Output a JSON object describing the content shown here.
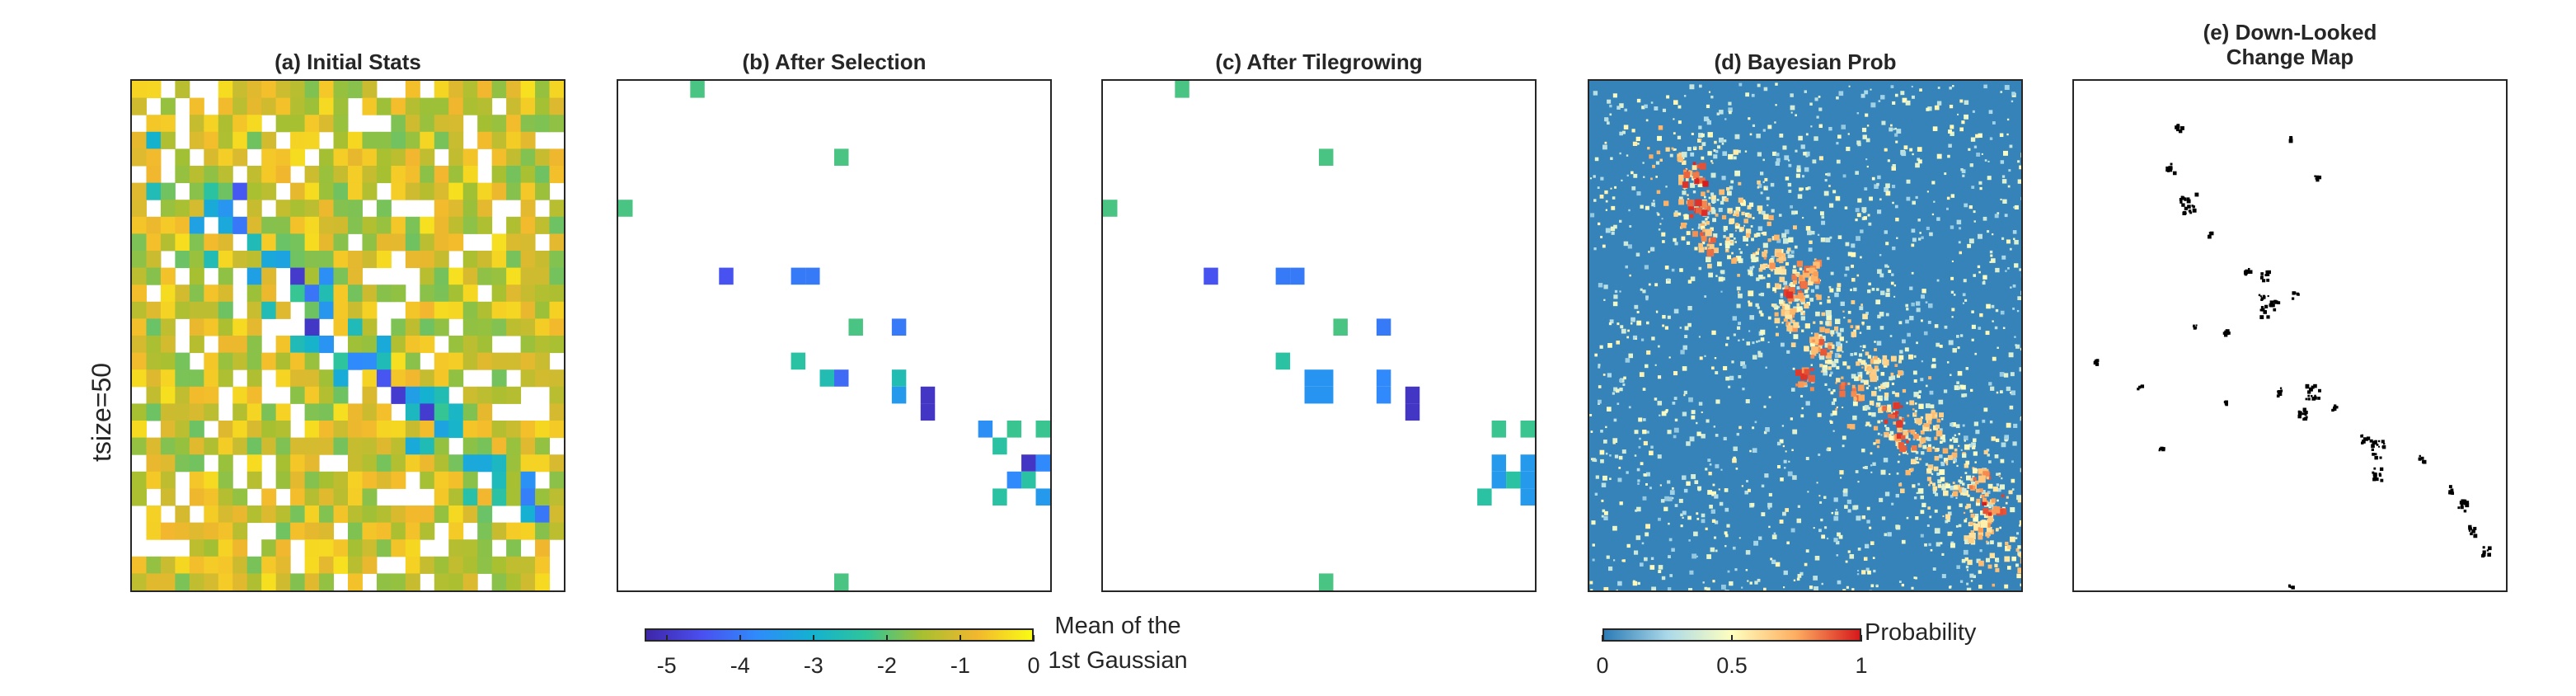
{
  "row_label": "tsize=50",
  "panels": [
    {
      "title": "(a) Initial Stats"
    },
    {
      "title": "(b) After Selection"
    },
    {
      "title": "(c) After Tilegrowing"
    },
    {
      "title": "(d) Bayesian Prob"
    },
    {
      "title": "(e) Down-Looked\nChange Map"
    }
  ],
  "colorbar_gauss": {
    "label": "Mean of the\n1st Gaussian",
    "ticks": [
      "-5",
      "-4",
      "-3",
      "-2",
      "-1",
      "0"
    ],
    "range": [
      -5.3,
      0
    ],
    "colors": [
      "#3e26a8",
      "#4a4ff0",
      "#2f8bfb",
      "#14b1d1",
      "#2fc59a",
      "#a6c031",
      "#f2b72e",
      "#f9fb15"
    ]
  },
  "colorbar_prob": {
    "label": "Probability",
    "ticks": [
      "0",
      "0.5",
      "1"
    ],
    "range": [
      0,
      1
    ],
    "colors": [
      "#2c7bb6",
      "#abd9e9",
      "#ffffbf",
      "#fdae61",
      "#d7191c"
    ]
  },
  "chart_data": [
    {
      "type": "heatmap",
      "title": "(a) Initial Stats",
      "grid": [
        30,
        30
      ],
      "colormap": "parula",
      "clim": [
        -5.3,
        0
      ],
      "description_values": "per-tile mean of the 1st Gaussian; mostly -1.5 to -0.3, low values (-5 to -3) along a diagonal band from upper-center to lower-right; some tiles empty (white)",
      "low_band_cells": [
        [
          6,
          7
        ],
        [
          7,
          6
        ],
        [
          8,
          6
        ],
        [
          8,
          7
        ],
        [
          10,
          10
        ],
        [
          11,
          11
        ],
        [
          11,
          13
        ],
        [
          12,
          12
        ],
        [
          13,
          13
        ],
        [
          14,
          12
        ],
        [
          15,
          13
        ],
        [
          16,
          15
        ],
        [
          16,
          16
        ],
        [
          17,
          17
        ],
        [
          18,
          18
        ],
        [
          18,
          19
        ],
        [
          19,
          20
        ],
        [
          20,
          21
        ],
        [
          22,
          24
        ],
        [
          23,
          27
        ],
        [
          24,
          27
        ],
        [
          25,
          28
        ]
      ]
    },
    {
      "type": "heatmap",
      "title": "(b) After Selection",
      "grid": [
        30,
        30
      ],
      "colormap": "parula",
      "clim": [
        -5.3,
        0
      ],
      "selected_cells": [
        {
          "row": 0,
          "col": 5,
          "value": -2.1
        },
        {
          "row": 4,
          "col": 15,
          "value": -2.1
        },
        {
          "row": 7,
          "col": 0,
          "value": -2.1
        },
        {
          "row": 11,
          "col": 7,
          "value": -4.5
        },
        {
          "row": 11,
          "col": 13,
          "value": -4.0
        },
        {
          "row": 11,
          "col": 12,
          "value": -4.0
        },
        {
          "row": 14,
          "col": 16,
          "value": -2.1
        },
        {
          "row": 14,
          "col": 19,
          "value": -4.0
        },
        {
          "row": 16,
          "col": 12,
          "value": -2.4
        },
        {
          "row": 17,
          "col": 15,
          "value": -4.2
        },
        {
          "row": 17,
          "col": 14,
          "value": -2.6
        },
        {
          "row": 17,
          "col": 19,
          "value": -2.6
        },
        {
          "row": 18,
          "col": 19,
          "value": -3.5
        },
        {
          "row": 18,
          "col": 21,
          "value": -5.0
        },
        {
          "row": 19,
          "col": 21,
          "value": -5.0
        },
        {
          "row": 20,
          "col": 25,
          "value": -3.7
        },
        {
          "row": 20,
          "col": 27,
          "value": -2.2
        },
        {
          "row": 20,
          "col": 29,
          "value": -2.2
        },
        {
          "row": 21,
          "col": 26,
          "value": -2.4
        },
        {
          "row": 22,
          "col": 28,
          "value": -5.0
        },
        {
          "row": 22,
          "col": 29,
          "value": -3.8
        },
        {
          "row": 23,
          "col": 27,
          "value": -3.8
        },
        {
          "row": 23,
          "col": 28,
          "value": -2.4
        },
        {
          "row": 24,
          "col": 26,
          "value": -2.4
        },
        {
          "row": 24,
          "col": 29,
          "value": -3.5
        },
        {
          "row": 29,
          "col": 15,
          "value": -2.1
        }
      ]
    },
    {
      "type": "heatmap",
      "title": "(c) After Tilegrowing",
      "grid": [
        30,
        30
      ],
      "colormap": "parula",
      "clim": [
        -5.3,
        0
      ],
      "selected_cells": [
        {
          "row": 0,
          "col": 5,
          "value": -2.1
        },
        {
          "row": 4,
          "col": 15,
          "value": -2.1
        },
        {
          "row": 7,
          "col": 0,
          "value": -2.1
        },
        {
          "row": 11,
          "col": 7,
          "value": -4.5
        },
        {
          "row": 11,
          "col": 12,
          "value": -4.0
        },
        {
          "row": 11,
          "col": 13,
          "value": -4.0
        },
        {
          "row": 14,
          "col": 16,
          "value": -2.1
        },
        {
          "row": 14,
          "col": 19,
          "value": -4.0
        },
        {
          "row": 16,
          "col": 12,
          "value": -2.4
        },
        {
          "row": 17,
          "col": 14,
          "value": -3.6
        },
        {
          "row": 17,
          "col": 15,
          "value": -3.6
        },
        {
          "row": 17,
          "col": 19,
          "value": -3.8
        },
        {
          "row": 18,
          "col": 14,
          "value": -3.6
        },
        {
          "row": 18,
          "col": 15,
          "value": -3.6
        },
        {
          "row": 18,
          "col": 19,
          "value": -3.8
        },
        {
          "row": 18,
          "col": 21,
          "value": -5.0
        },
        {
          "row": 19,
          "col": 21,
          "value": -5.0
        },
        {
          "row": 20,
          "col": 27,
          "value": -2.2
        },
        {
          "row": 20,
          "col": 29,
          "value": -2.2
        },
        {
          "row": 22,
          "col": 27,
          "value": -3.5
        },
        {
          "row": 22,
          "col": 29,
          "value": -3.5
        },
        {
          "row": 23,
          "col": 27,
          "value": -3.5
        },
        {
          "row": 23,
          "col": 28,
          "value": -2.4
        },
        {
          "row": 23,
          "col": 29,
          "value": -3.5
        },
        {
          "row": 24,
          "col": 26,
          "value": -2.4
        },
        {
          "row": 24,
          "col": 29,
          "value": -3.5
        },
        {
          "row": 29,
          "col": 15,
          "value": -2.1
        }
      ]
    },
    {
      "type": "heatmap",
      "title": "(d) Bayesian Prob",
      "colormap": "RdYlBu_r",
      "clim": [
        0,
        1
      ],
      "description_values": "per-pixel change probability; background near 0 with scattered low speckle; high probability (0.7-1) clusters along a diagonal band from upper-left-center to lower-right",
      "hotspots": [
        {
          "row": 0.18,
          "col": 0.24,
          "p": 1.0
        },
        {
          "row": 0.25,
          "col": 0.25,
          "p": 1.0
        },
        {
          "row": 0.31,
          "col": 0.26,
          "p": 0.9
        },
        {
          "row": 0.35,
          "col": 0.42,
          "p": 0.8
        },
        {
          "row": 0.4,
          "col": 0.47,
          "p": 1.0
        },
        {
          "row": 0.37,
          "col": 0.5,
          "p": 0.9
        },
        {
          "row": 0.46,
          "col": 0.45,
          "p": 0.8
        },
        {
          "row": 0.52,
          "col": 0.53,
          "p": 0.9
        },
        {
          "row": 0.58,
          "col": 0.49,
          "p": 1.0
        },
        {
          "row": 0.6,
          "col": 0.6,
          "p": 0.9
        },
        {
          "row": 0.56,
          "col": 0.66,
          "p": 0.8
        },
        {
          "row": 0.65,
          "col": 0.7,
          "p": 1.0
        },
        {
          "row": 0.7,
          "col": 0.73,
          "p": 1.0
        },
        {
          "row": 0.67,
          "col": 0.78,
          "p": 0.8
        },
        {
          "row": 0.78,
          "col": 0.9,
          "p": 0.9
        },
        {
          "row": 0.83,
          "col": 0.93,
          "p": 1.0
        },
        {
          "row": 0.88,
          "col": 0.9,
          "p": 0.8
        }
      ]
    },
    {
      "type": "heatmap",
      "title": "(e) Down-Looked\nChange Map",
      "colormap": "binary",
      "clim": [
        0,
        1
      ],
      "description_values": "binary change map; changed pixels (black) scattered along the same diagonal band",
      "changed_blobs": [
        {
          "row": 0.09,
          "col": 0.24,
          "size": 0.012
        },
        {
          "row": 0.17,
          "col": 0.22,
          "size": 0.015
        },
        {
          "row": 0.24,
          "col": 0.26,
          "size": 0.035
        },
        {
          "row": 0.11,
          "col": 0.5,
          "size": 0.008
        },
        {
          "row": 0.19,
          "col": 0.56,
          "size": 0.008
        },
        {
          "row": 0.3,
          "col": 0.31,
          "size": 0.008
        },
        {
          "row": 0.37,
          "col": 0.4,
          "size": 0.012
        },
        {
          "row": 0.38,
          "col": 0.44,
          "size": 0.015
        },
        {
          "row": 0.44,
          "col": 0.45,
          "size": 0.04
        },
        {
          "row": 0.42,
          "col": 0.51,
          "size": 0.012
        },
        {
          "row": 0.48,
          "col": 0.28,
          "size": 0.01
        },
        {
          "row": 0.49,
          "col": 0.35,
          "size": 0.01
        },
        {
          "row": 0.55,
          "col": 0.05,
          "size": 0.008
        },
        {
          "row": 0.61,
          "col": 0.47,
          "size": 0.015
        },
        {
          "row": 0.61,
          "col": 0.55,
          "size": 0.025
        },
        {
          "row": 0.65,
          "col": 0.53,
          "size": 0.02
        },
        {
          "row": 0.64,
          "col": 0.6,
          "size": 0.012
        },
        {
          "row": 0.7,
          "col": 0.67,
          "size": 0.015
        },
        {
          "row": 0.72,
          "col": 0.7,
          "size": 0.03
        },
        {
          "row": 0.77,
          "col": 0.7,
          "size": 0.02
        },
        {
          "row": 0.74,
          "col": 0.8,
          "size": 0.012
        },
        {
          "row": 0.8,
          "col": 0.87,
          "size": 0.012
        },
        {
          "row": 0.83,
          "col": 0.9,
          "size": 0.02
        },
        {
          "row": 0.88,
          "col": 0.92,
          "size": 0.015
        },
        {
          "row": 0.92,
          "col": 0.95,
          "size": 0.015
        },
        {
          "row": 0.6,
          "col": 0.15,
          "size": 0.008
        },
        {
          "row": 0.72,
          "col": 0.2,
          "size": 0.008
        },
        {
          "row": 0.63,
          "col": 0.35,
          "size": 0.008
        },
        {
          "row": 0.99,
          "col": 0.5,
          "size": 0.008
        }
      ]
    }
  ]
}
